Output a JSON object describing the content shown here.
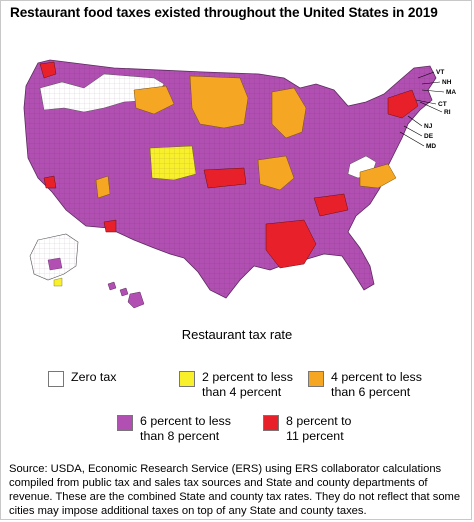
{
  "title": "Restaurant food taxes existed throughout the United States in 2019",
  "legend": {
    "title": "Restaurant tax rate",
    "items": [
      {
        "label": "Zero tax",
        "color": "#ffffff"
      },
      {
        "label": "2 percent to less\nthan 4 percent",
        "color": "#f7f02a"
      },
      {
        "label": "4 percent to less\nthan 6 percent",
        "color": "#f5a623"
      },
      {
        "label": "6 percent to less\nthan 8 percent",
        "color": "#b14fb3"
      },
      {
        "label": "8 percent to\n11 percent",
        "color": "#e8202a"
      }
    ]
  },
  "state_labels": [
    "VT",
    "NH",
    "MA",
    "CT",
    "RI",
    "NJ",
    "DE",
    "MD"
  ],
  "source": "Source: USDA, Economic Research Service (ERS) using ERS collaborator calculations compiled from public tax and sales tax sources and State and county departments of revenue. These are the combined State and county tax rates. They do not reflect that some cities may impose additional taxes on top of any State and county taxes."
}
